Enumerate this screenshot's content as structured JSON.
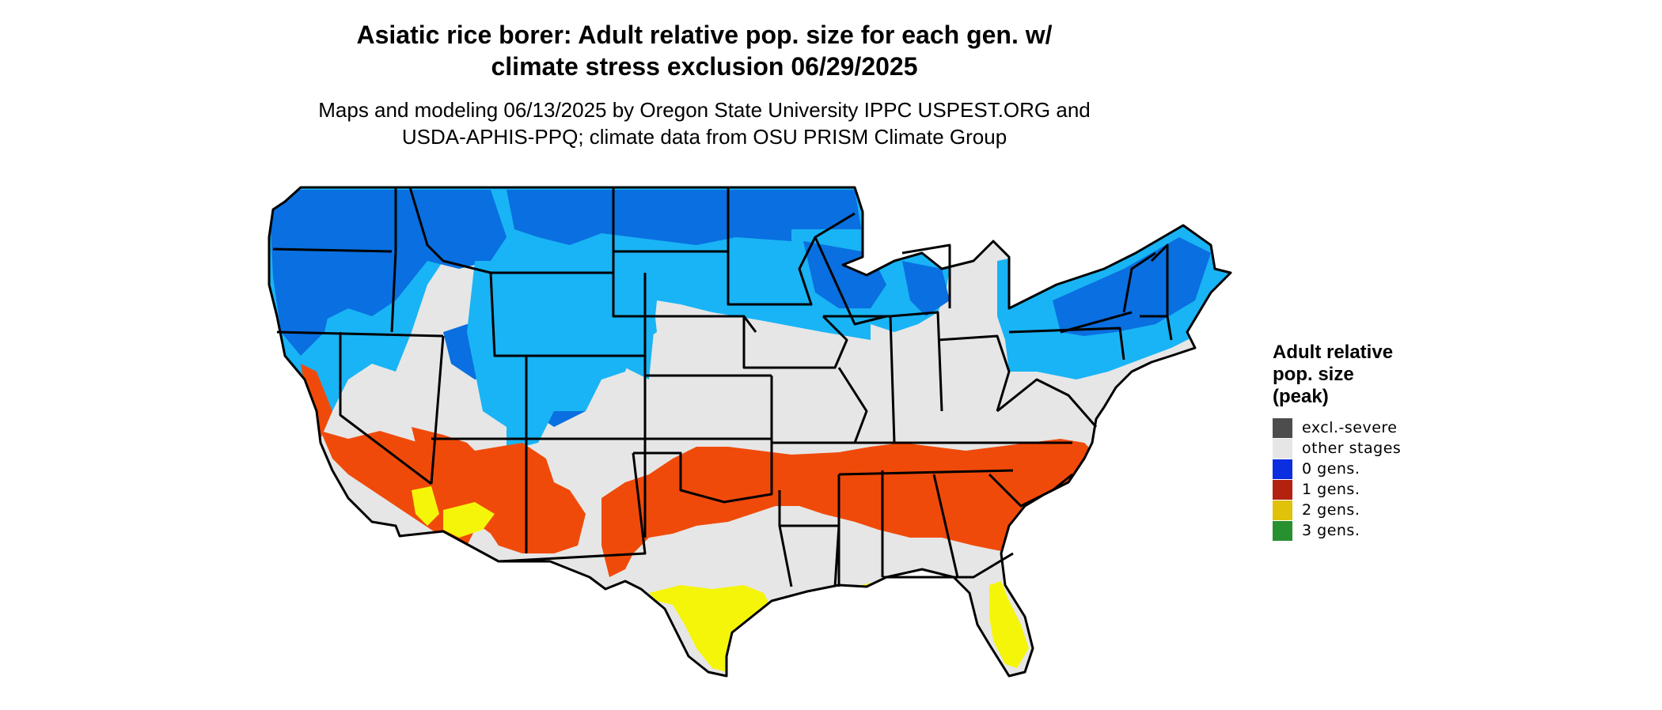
{
  "title": {
    "line1": "Asiatic rice borer: Adult relative pop. size for each gen. w/",
    "line2": "climate stress exclusion 06/29/2025"
  },
  "subtitle": {
    "line1": "Maps and modeling 06/13/2025 by Oregon State University IPPC USPEST.ORG and",
    "line2": "USDA-APHIS-PPQ; climate data from OSU PRISM Climate Group"
  },
  "legend": {
    "title_line1": "Adult relative",
    "title_line2": "pop. size",
    "title_line3": "(peak)",
    "items": [
      {
        "label": "excl.-severe",
        "color": "#4d4d4d"
      },
      {
        "label": "other stages",
        "color": "#e6e6e6"
      },
      {
        "label": "0 gens.",
        "color": "#0a2ee0"
      },
      {
        "label": "1 gens.",
        "color": "#b3220f"
      },
      {
        "label": "2 gens.",
        "color": "#e0c20a"
      },
      {
        "label": "3 gens.",
        "color": "#27902f"
      }
    ]
  },
  "map_colors": {
    "land": "#e6e6e6",
    "zero_gen_dark": "#0a6fe0",
    "zero_gen_light": "#19b4f5",
    "one_gen": "#f04a0a",
    "two_gen": "#f5f50a",
    "border": "#000000"
  }
}
